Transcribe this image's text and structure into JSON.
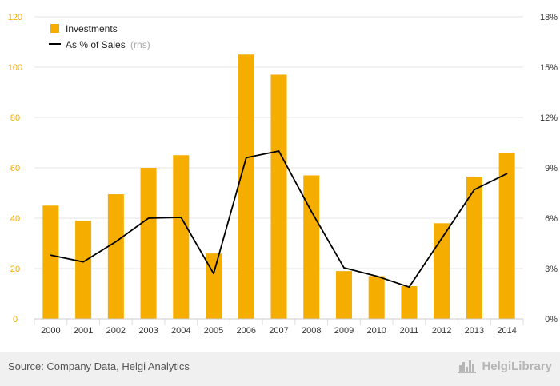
{
  "chart_data": {
    "type": "bar",
    "categories": [
      "2000",
      "2001",
      "2002",
      "2003",
      "2004",
      "2005",
      "2006",
      "2007",
      "2008",
      "2009",
      "2010",
      "2011",
      "2012",
      "2013",
      "2014"
    ],
    "series": [
      {
        "name": "Investments",
        "type": "bar",
        "axis": "left",
        "color": "#f5ad00",
        "values": [
          45,
          39,
          49.5,
          60,
          65,
          26,
          105,
          97,
          57,
          19,
          17,
          13,
          38,
          56.5,
          66
        ]
      },
      {
        "name": "As % of Sales",
        "name_suffix": "(rhs)",
        "type": "line",
        "axis": "right",
        "color": "#000000",
        "values": [
          3.8,
          3.4,
          4.6,
          6.0,
          6.05,
          2.7,
          9.6,
          10.0,
          6.4,
          3.05,
          2.55,
          1.9,
          4.8,
          7.7,
          8.65
        ]
      }
    ],
    "y_left": {
      "ylim": [
        0,
        120
      ],
      "ticks": [
        "0",
        "20",
        "40",
        "60",
        "80",
        "100",
        "120"
      ],
      "tick_color": "#f5ad00"
    },
    "y_right": {
      "ylim": [
        0,
        18
      ],
      "ticks": [
        "0%",
        "3%",
        "6%",
        "9%",
        "12%",
        "15%",
        "18%"
      ]
    },
    "grid": true,
    "legend_position": "top-left"
  },
  "footer": {
    "source": "Source: Company Data, Helgi Analytics",
    "brand": "HelgiLibrary"
  },
  "colors": {
    "bar": "#f5ad00",
    "line": "#000000",
    "grid": "#e6e6e6"
  },
  "icons": {
    "brand": "skyline-logo-icon"
  }
}
